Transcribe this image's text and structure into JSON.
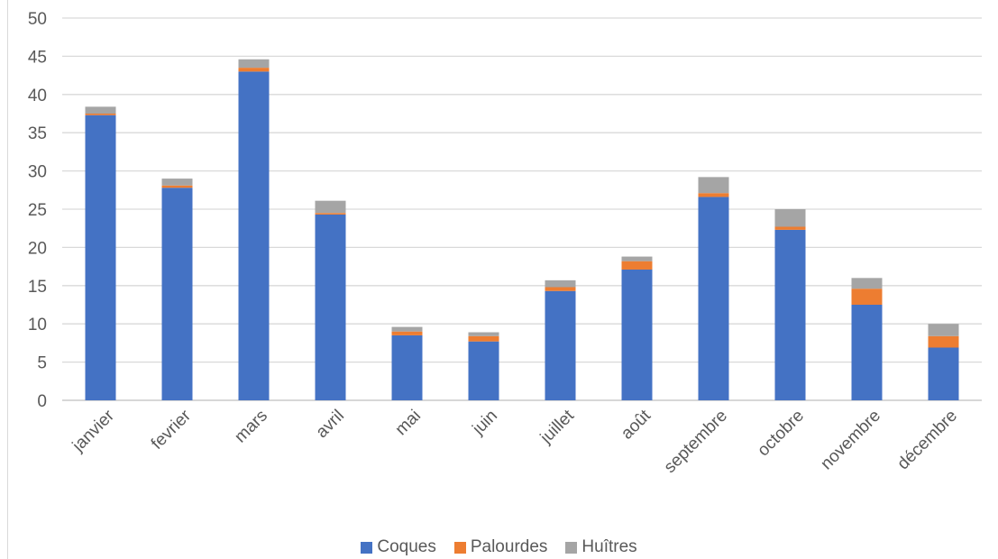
{
  "chart_data": {
    "type": "bar",
    "stacked": true,
    "categories": [
      "janvier",
      "fevrier",
      "mars",
      "avril",
      "mai",
      "juin",
      "juillet",
      "août",
      "septembre",
      "octobre",
      "novembre",
      "décembre"
    ],
    "series": [
      {
        "name": "Coques",
        "color": "#4472C4",
        "values": [
          37.3,
          27.8,
          43.0,
          24.3,
          8.5,
          7.7,
          14.3,
          17.1,
          26.6,
          22.3,
          12.5,
          6.9
        ]
      },
      {
        "name": "Palourdes",
        "color": "#ED7D31",
        "values": [
          0.2,
          0.3,
          0.5,
          0.2,
          0.5,
          0.7,
          0.5,
          1.1,
          0.5,
          0.4,
          2.1,
          1.5
        ]
      },
      {
        "name": "Huîtres",
        "color": "#A5A5A5",
        "values": [
          0.9,
          0.9,
          1.1,
          1.6,
          0.6,
          0.5,
          0.9,
          0.6,
          2.1,
          2.3,
          1.4,
          1.6
        ]
      }
    ],
    "ylim": [
      0,
      50
    ],
    "yticks": [
      "0",
      "5",
      "10",
      "15",
      "20",
      "25",
      "30",
      "35",
      "40",
      "45",
      "50"
    ],
    "title": "",
    "xlabel": "",
    "ylabel": "",
    "grid": true,
    "legend_position": "bottom"
  }
}
